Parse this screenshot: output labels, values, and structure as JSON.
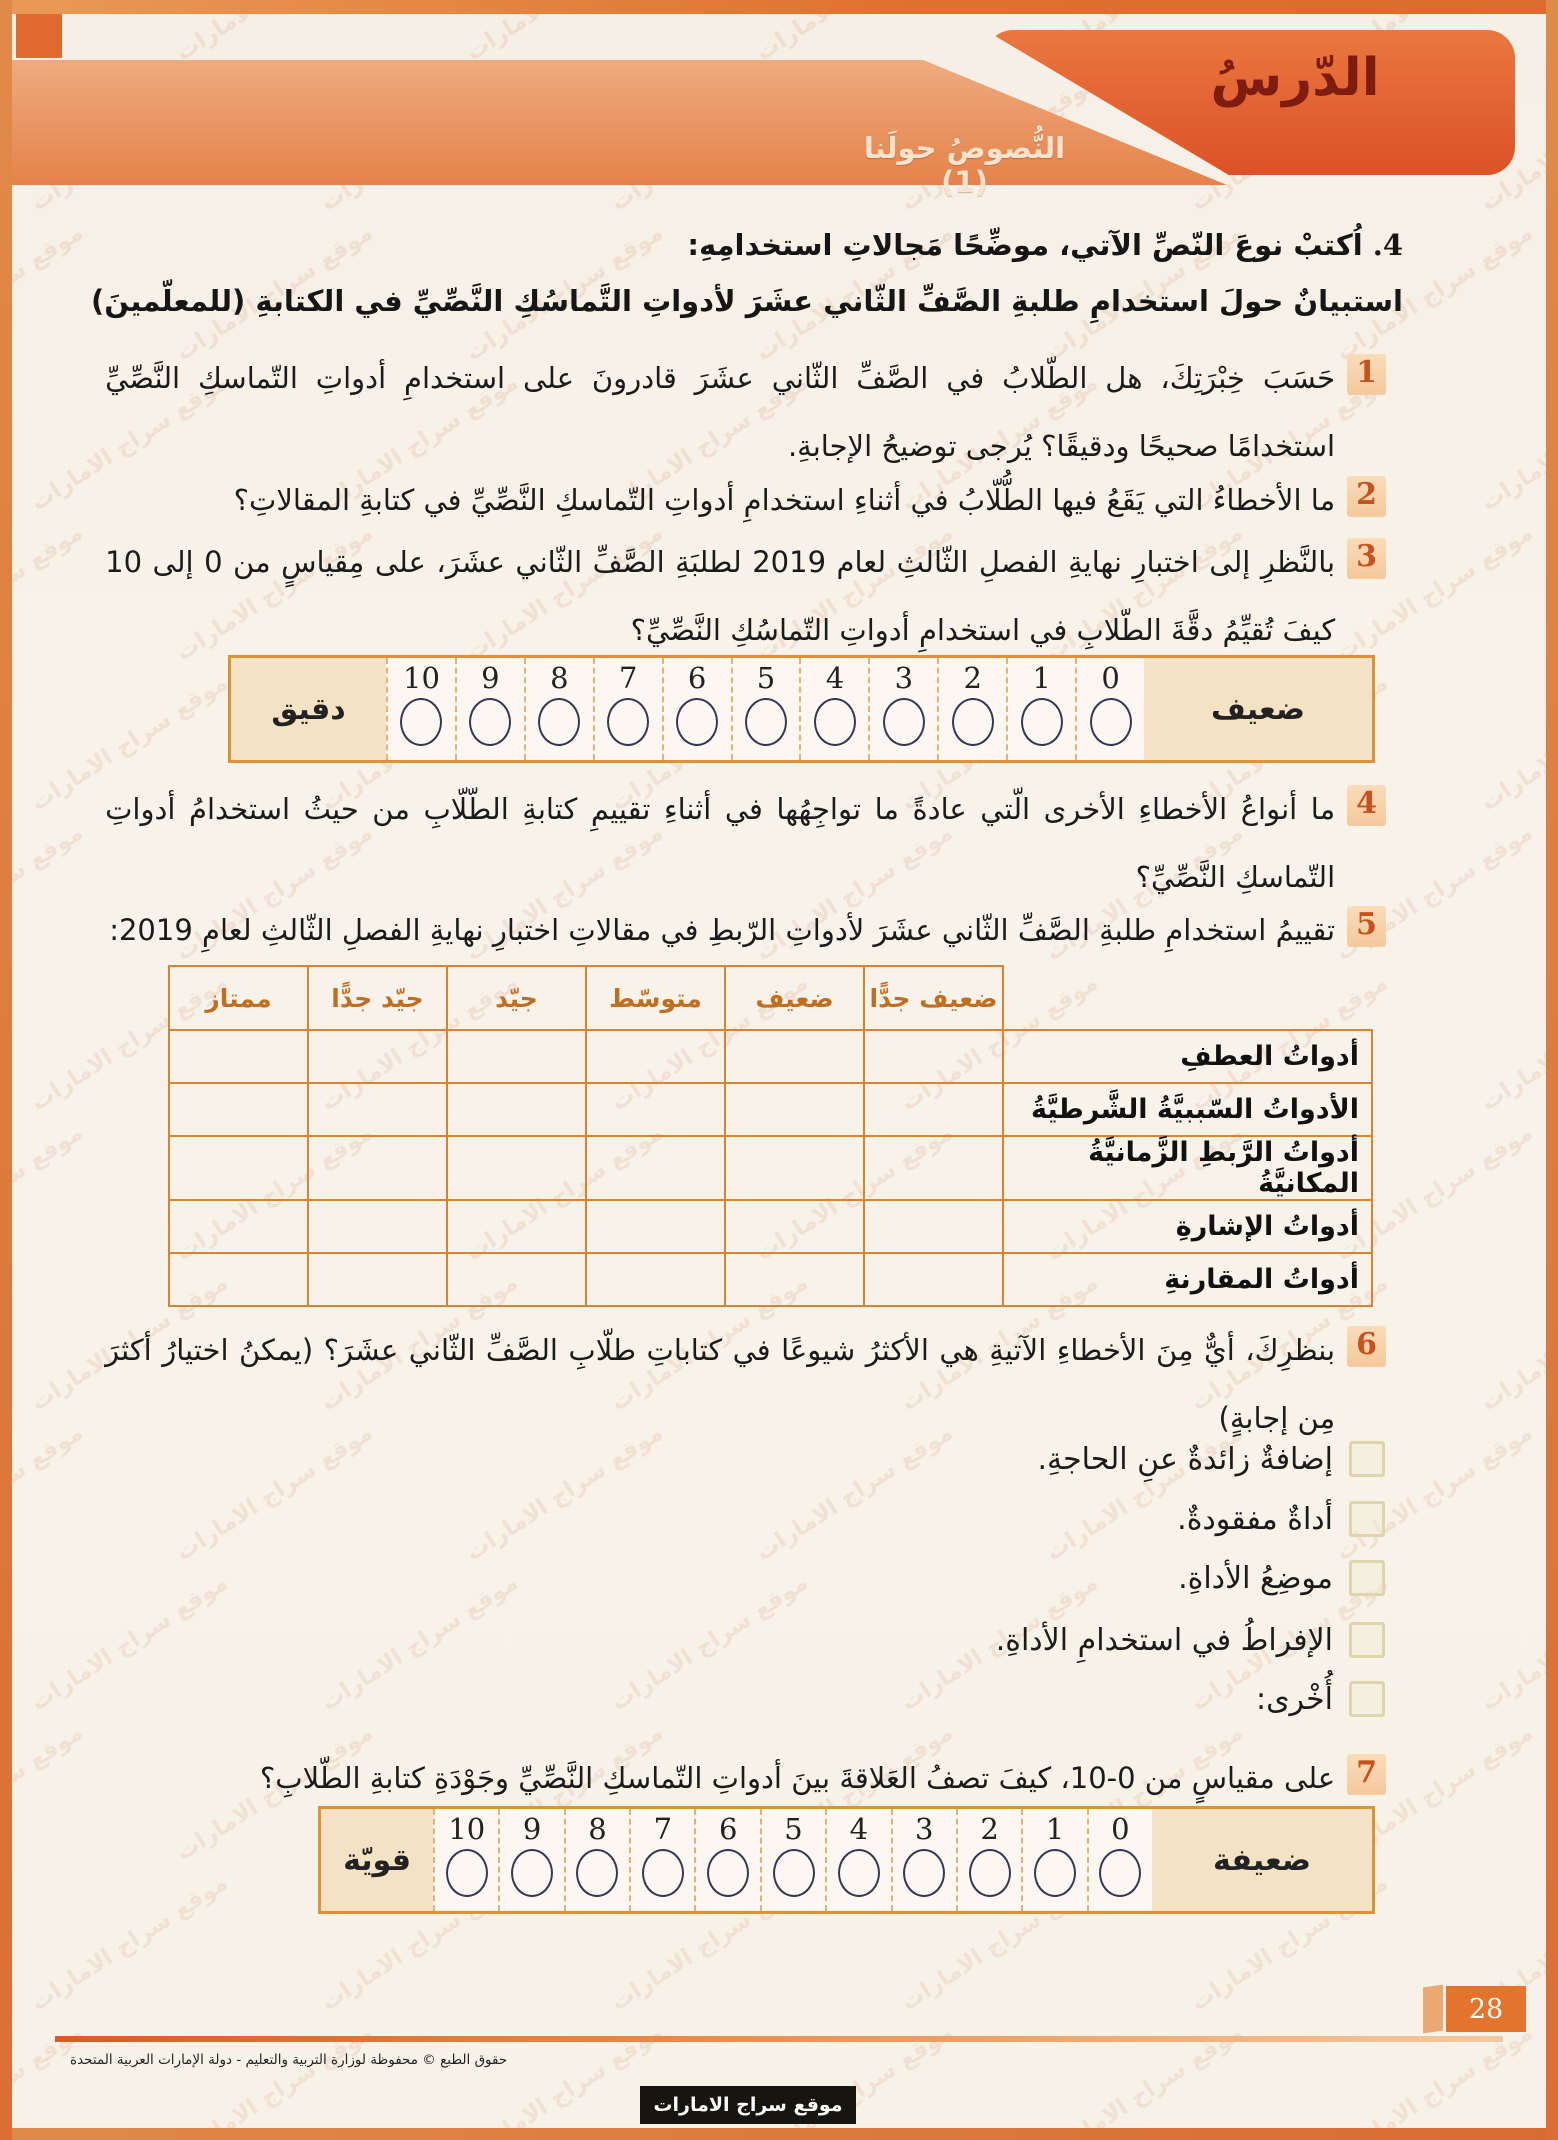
{
  "header": {
    "lesson_label": "الدّرسُ",
    "unit_title": "النُّصوصُ حولَنا (1)"
  },
  "intro": {
    "number": "4.",
    "text": "اُكتبْ نوعَ النّصِّ الآتي، موضِّحًا مَجالاتِ استخدامِهِ:",
    "survey_title": "استبيانٌ حولَ استخدامِ طلبةِ الصَّفِّ الثّاني عشَرَ لأدواتِ التَّماسُكِ النَّصِّيِّ في الكتابةِ (للمعلّمينَ)"
  },
  "questions": [
    {
      "num": "1",
      "text": "حَسَبَ خِبْرَتِكَ، هل الطّلابُ في الصَّفِّ الثّاني عشَرَ قادرونَ على استخدامِ أدواتِ التّماسكِ النَّصِّيِّ استخدامًا صحيحًا ودقيقًا؟ يُرجى توضيحُ الإجابةِ."
    },
    {
      "num": "2",
      "text": "ما الأخطاءُ التي يَقَعُ فيها الطُّلّابُ في أثناءِ استخدامِ أدواتِ التّماسكِ النَّصِّيِّ في كتابةِ المقالاتِ؟"
    },
    {
      "num": "3",
      "text": "بالنَّظرِ إلى اختبارِ نهايةِ الفصلِ الثّالثِ لعام 2019 لطلبَةِ الصَّفِّ الثّاني عشَرَ، على مِقياسٍ من 0 إلى 10 كيفَ تُقيِّمُ دقَّةَ الطّلابِ في استخدامِ أدواتِ التّماسُكِ النَّصِّيِّ؟"
    },
    {
      "num": "4",
      "text": "ما أنواعُ الأخطاءِ الأخرى الّتي عادةً ما تواجِهُها في أثناءِ تقييمِ كتابةِ الطّلّابِ من حيثُ استخدامُ أدواتِ التّماسكِ النَّصِّيِّ؟"
    },
    {
      "num": "5",
      "text": "تقييمُ استخدامِ طلبةِ الصَّفِّ الثّاني عشَرَ لأدواتِ الرّبطِ في مقالاتِ اختبارِ نهايةِ الفصلِ الثّالثِ لعامِ 2019:"
    },
    {
      "num": "6",
      "text": "بنظرِكَ، أيٌّ مِنَ الأخطاءِ الآتيةِ هي الأكثرُ شيوعًا في كتاباتِ طلّابِ الصَّفِّ الثّاني عشَرَ؟ (يمكنُ اختيارُ أكثرَ مِن إجابةٍ)"
    },
    {
      "num": "7",
      "text": "على مقياسٍ من 0-10، كيفَ تصفُ العَلاقةَ بينَ أدواتِ التّماسكِ النَّصِّيِّ وجَوْدَةِ كتابةِ الطّلابِ؟"
    }
  ],
  "scale_accuracy": {
    "right_label": "ضعيف",
    "left_label": "دقيق",
    "values": [
      "0",
      "1",
      "2",
      "3",
      "4",
      "5",
      "6",
      "7",
      "8",
      "9",
      "10"
    ]
  },
  "rubric_table": {
    "headers": [
      "ضعيف جدًّا",
      "ضعيف",
      "متوسّط",
      "جيّد",
      "جيّد جدًّا",
      "ممتاز"
    ],
    "row_labels": [
      "أدواتُ العطفِ",
      "الأدواتُ السّببيَّةُ الشَّرطيَّةُ",
      "أدواتُ الرَّبطِ الزَّمانيَّةُ المكانيَّةُ",
      "أدواتُ الإشارةِ",
      "أدواتُ المقارنةِ"
    ]
  },
  "error_options": [
    "إضافةٌ زائدةٌ عنِ الحاجةِ.",
    "أداةٌ مفقودةٌ.",
    "موضِعُ الأداةِ.",
    "الإفراطُ في استخدامِ الأداةِ.",
    "أُخْرى:"
  ],
  "scale_relationship": {
    "right_label": "ضعيفة",
    "left_label": "قويّة",
    "values": [
      "0",
      "1",
      "2",
      "3",
      "4",
      "5",
      "6",
      "7",
      "8",
      "9",
      "10"
    ]
  },
  "footer": {
    "copyright": "حقوق الطبع © محفوظة لوزارة التربية والتعليم - دولة الإمارات العربية المتحدة",
    "site_name": "موقع سراج الامارات",
    "page_number": "28"
  },
  "watermark": {
    "text": "موقع سراج الامارات"
  },
  "colors": {
    "frame_orange": "#dd6a2e",
    "banner_dark": "#dc5226",
    "banner_light": "#eb9a68",
    "lesson_text": "#7f1c10",
    "table_border": "#d9832e",
    "table_header_text": "#c06f22",
    "scale_border": "#dc9334",
    "scale_label_bg": "#f3e2c4",
    "question_number": "#c8511d",
    "page_number_bg": "#e4732c"
  }
}
